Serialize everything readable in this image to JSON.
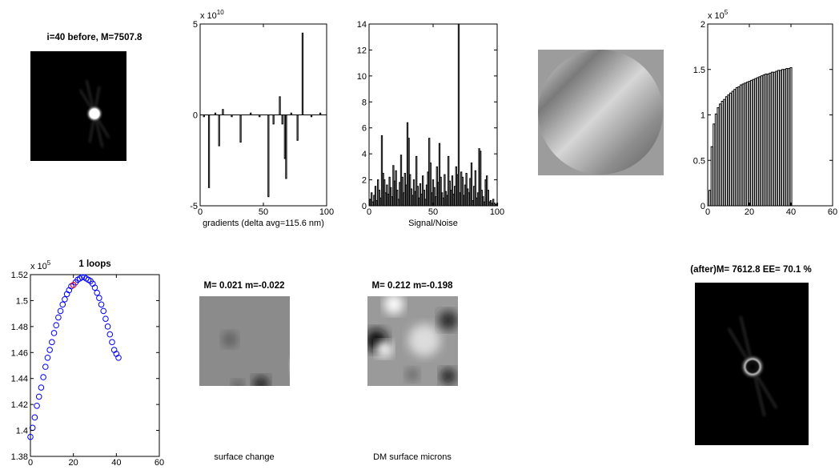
{
  "chart_data": [
    {
      "type": "image",
      "title": "i=40 before, M=7507.8"
    },
    {
      "type": "bar",
      "xlabel": "gradients (delta avg=115.6 nm)",
      "ymult": {
        "base": "x 10",
        "power": "10"
      },
      "x": [
        3,
        7,
        12,
        15,
        18,
        25,
        32,
        40,
        47,
        54,
        58,
        63,
        65,
        67,
        68,
        72,
        77,
        81,
        88,
        95
      ],
      "values": [
        -0.1,
        -4.0,
        0.1,
        -1.7,
        0.3,
        -0.1,
        -1.5,
        0.1,
        -0.1,
        -4.5,
        -0.5,
        1.0,
        -0.5,
        -2.4,
        -3.5,
        0.1,
        -1.4,
        4.5,
        -0.1,
        0.1
      ],
      "xlim": [
        0,
        100
      ],
      "xticks": [
        0,
        50,
        100
      ],
      "ylim": [
        -5,
        5
      ],
      "yticks": [
        -5,
        0,
        5
      ]
    },
    {
      "type": "bar",
      "xlabel": "Signal/Noise",
      "x": [
        1,
        2,
        3,
        4,
        5,
        6,
        7,
        8,
        9,
        10,
        11,
        12,
        13,
        14,
        15,
        16,
        17,
        18,
        19,
        20,
        21,
        22,
        23,
        24,
        25,
        26,
        27,
        28,
        29,
        30,
        31,
        32,
        33,
        34,
        35,
        36,
        37,
        38,
        39,
        40,
        41,
        42,
        43,
        44,
        45,
        46,
        47,
        48,
        49,
        50,
        51,
        52,
        53,
        54,
        55,
        56,
        57,
        58,
        59,
        60,
        61,
        62,
        63,
        64,
        65,
        66,
        67,
        68,
        69,
        70,
        71,
        72,
        73,
        74,
        75,
        76,
        77,
        78,
        79,
        80,
        81,
        82,
        83,
        84,
        85,
        86,
        87,
        88,
        89,
        90,
        91,
        92,
        93,
        94,
        95,
        96,
        97,
        98,
        99,
        100
      ],
      "values": [
        0.5,
        1.0,
        0.3,
        0.8,
        1.5,
        0.4,
        2.0,
        1.2,
        0.6,
        5.4,
        2.5,
        2.0,
        1.0,
        1.6,
        0.9,
        2.2,
        1.4,
        0.7,
        3.1,
        1.9,
        2.7,
        1.2,
        0.5,
        1.8,
        3.9,
        2.2,
        1.0,
        2.5,
        1.6,
        6.4,
        5.2,
        2.4,
        1.3,
        0.8,
        2.0,
        1.1,
        3.8,
        1.5,
        0.6,
        1.7,
        0.9,
        2.3,
        1.2,
        0.5,
        1.6,
        2.6,
        5.2,
        3.3,
        1.0,
        2.0,
        1.4,
        0.7,
        3.0,
        1.8,
        4.8,
        2.2,
        1.0,
        0.6,
        2.4,
        1.1,
        0.8,
        3.8,
        1.9,
        1.2,
        2.3,
        0.9,
        1.5,
        3.0,
        2.4,
        14,
        1.0,
        2.6,
        2.2,
        0.8,
        1.6,
        2.5,
        1.3,
        1.0,
        2.1,
        3.3,
        0.4,
        1.5,
        2.7,
        0.6,
        1.0,
        4.4,
        4.2,
        1.2,
        0.7,
        0.3,
        2.0,
        2.3,
        1.2,
        0.3,
        0.4,
        0.2,
        0.5,
        0.2,
        0.1,
        0.2
      ],
      "xlim": [
        0,
        100
      ],
      "xticks": [
        0,
        50,
        100
      ],
      "ylim": [
        0,
        14
      ],
      "yticks": [
        0,
        2,
        4,
        6,
        8,
        10,
        12,
        14
      ]
    },
    {
      "type": "bar",
      "ymult": {
        "base": "x 10",
        "power": "5"
      },
      "x": [
        1,
        2,
        3,
        4,
        5,
        6,
        7,
        8,
        9,
        10,
        11,
        12,
        13,
        14,
        15,
        16,
        17,
        18,
        19,
        20,
        21,
        22,
        23,
        24,
        25,
        26,
        27,
        28,
        29,
        30,
        31,
        32,
        33,
        34,
        35,
        36,
        37,
        38,
        39,
        40
      ],
      "values": [
        0.17,
        0.65,
        0.9,
        1.01,
        1.08,
        1.12,
        1.15,
        1.17,
        1.2,
        1.22,
        1.24,
        1.26,
        1.28,
        1.3,
        1.31,
        1.33,
        1.34,
        1.35,
        1.36,
        1.37,
        1.38,
        1.39,
        1.4,
        1.41,
        1.42,
        1.43,
        1.44,
        1.45,
        1.45,
        1.46,
        1.47,
        1.47,
        1.48,
        1.49,
        1.49,
        1.5,
        1.5,
        1.51,
        1.51,
        1.52
      ],
      "xlim": [
        0,
        60
      ],
      "xticks": [
        0,
        20,
        40,
        60
      ],
      "ylim": [
        0,
        2
      ],
      "yticks": [
        0,
        0.5,
        1,
        1.5,
        2
      ]
    },
    {
      "type": "scatter",
      "title": "1 loops",
      "ymult": {
        "base": "x 10",
        "power": "5"
      },
      "series": [
        {
          "color": "#0000ff",
          "x": [
            0,
            1,
            2,
            3,
            4,
            5,
            6,
            7,
            8,
            9,
            10,
            11,
            12,
            13,
            14,
            15,
            16,
            17,
            18,
            19,
            20,
            21,
            22,
            23,
            24,
            25,
            26,
            27,
            28,
            29,
            30,
            31,
            32,
            33,
            34,
            35,
            36,
            37,
            38,
            39,
            40,
            41
          ],
          "values": [
            1.395,
            1.402,
            1.41,
            1.419,
            1.426,
            1.433,
            1.441,
            1.449,
            1.456,
            1.462,
            1.468,
            1.475,
            1.481,
            1.487,
            1.492,
            1.497,
            1.501,
            1.505,
            1.508,
            1.511,
            1.512,
            1.514,
            1.516,
            1.517,
            1.518,
            1.518,
            1.517,
            1.516,
            1.515,
            1.513,
            1.51,
            1.506,
            1.502,
            1.497,
            1.492,
            1.486,
            1.48,
            1.474,
            1.468,
            1.462,
            1.459,
            1.456
          ]
        },
        {
          "color": "#ff0000",
          "x": [
            20
          ],
          "values": [
            1.512
          ]
        }
      ],
      "xlim": [
        0,
        60
      ],
      "xticks": [
        0,
        20,
        40,
        60
      ],
      "ylim": [
        1.38,
        1.52
      ],
      "yticks": [
        1.38,
        1.4,
        1.42,
        1.44,
        1.46,
        1.48,
        1.5,
        1.52
      ]
    },
    {
      "type": "image",
      "title": "M= 0.021 m=-0.022",
      "xlabel": "surface change"
    },
    {
      "type": "image",
      "title": "M= 0.212 m=-0.198",
      "xlabel": "DM surface microns"
    },
    {
      "type": "image",
      "title": "(after)M= 7612.8 EE=  70.1 %"
    }
  ]
}
